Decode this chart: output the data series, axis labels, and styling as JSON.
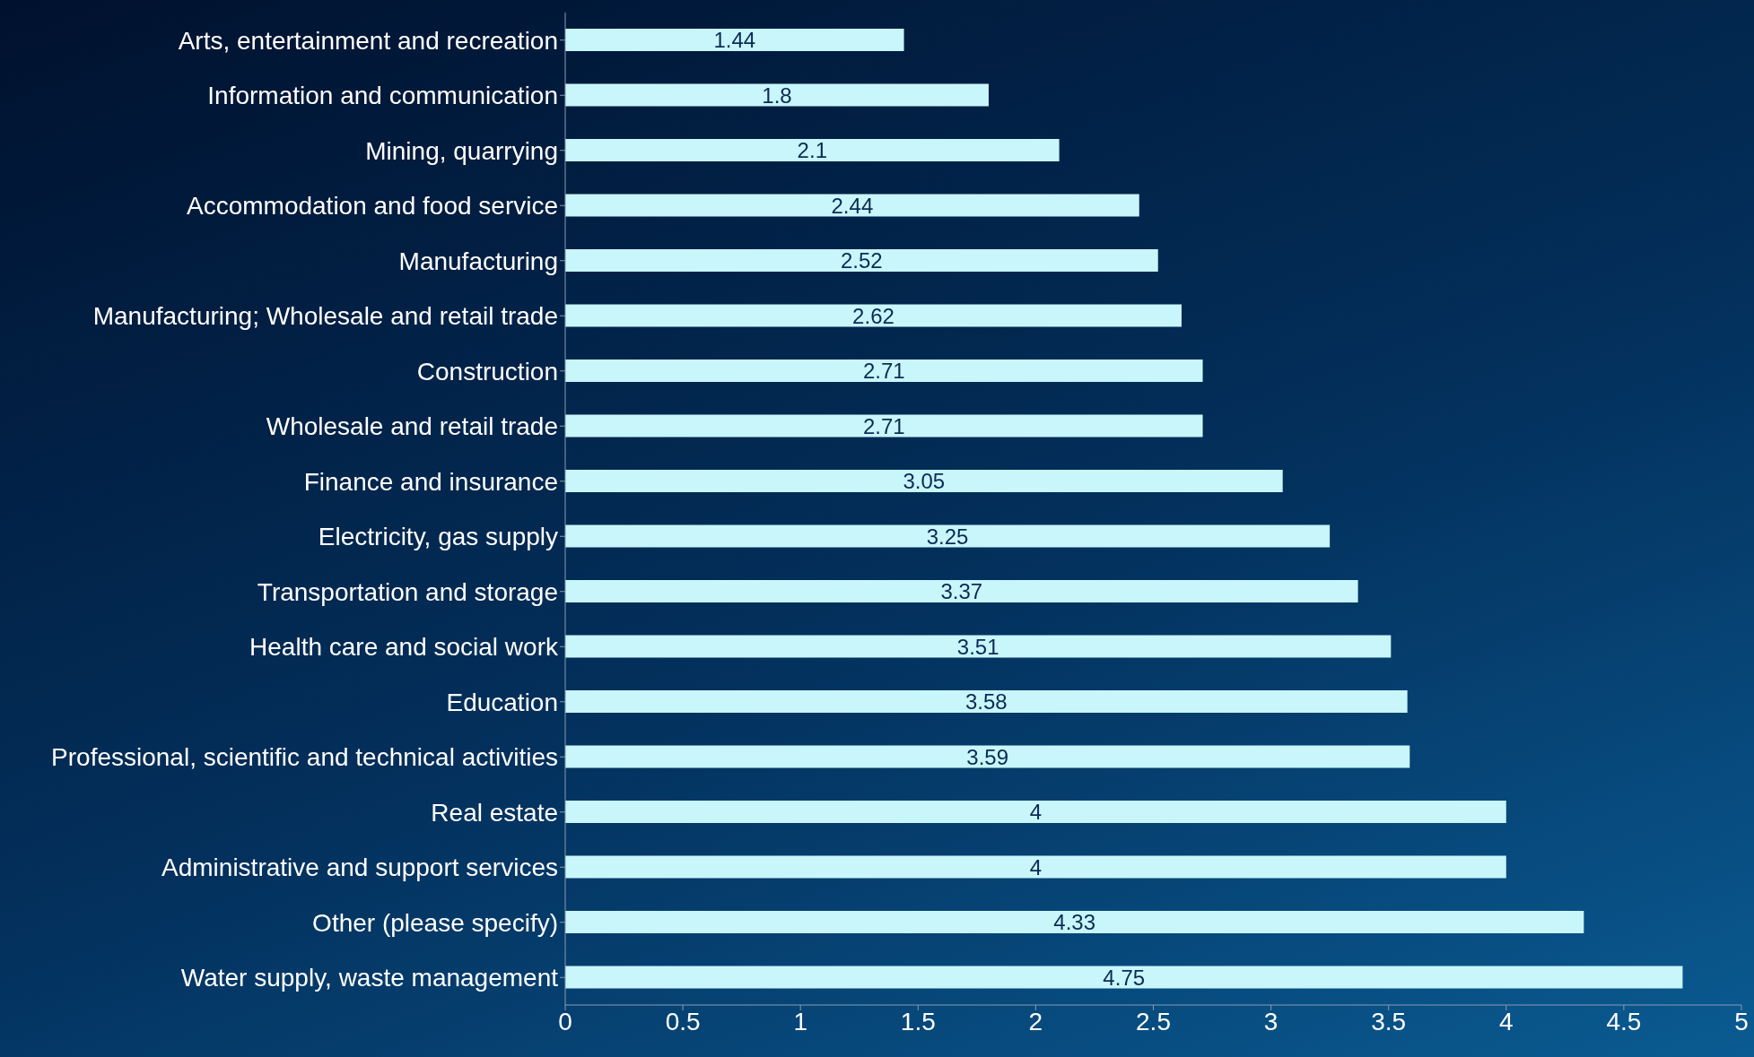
{
  "chart_data": {
    "type": "bar",
    "orientation": "horizontal",
    "categories": [
      "Arts, entertainment and recreation",
      "Information and communication",
      "Mining, quarrying",
      "Accommodation and food service",
      "Manufacturing",
      "Manufacturing; Wholesale and retail trade",
      "Construction",
      "Wholesale and retail trade",
      "Finance and insurance",
      "Electricity, gas supply",
      "Transportation and storage",
      "Health care and social work",
      "Education",
      "Professional, scientific and technical activities",
      "Real estate",
      "Administrative and support services",
      "Other (please specify)",
      "Water supply, waste management"
    ],
    "values": [
      1.44,
      1.8,
      2.1,
      2.44,
      2.52,
      2.62,
      2.71,
      2.71,
      3.05,
      3.25,
      3.37,
      3.51,
      3.58,
      3.59,
      4,
      4,
      4.33,
      4.75
    ],
    "color": "#c8f6fa",
    "xlim": [
      0,
      5
    ],
    "xticks": [
      0,
      0.5,
      1,
      1.5,
      2,
      2.5,
      3,
      3.5,
      4,
      4.5,
      5
    ],
    "data_labels": true,
    "grid": false,
    "legend": false
  }
}
